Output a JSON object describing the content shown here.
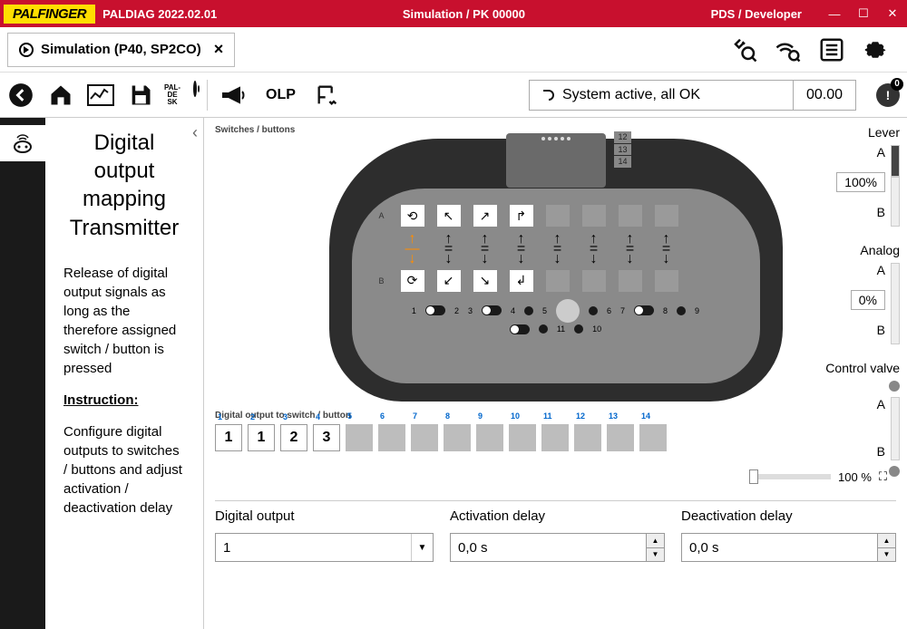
{
  "titlebar": {
    "logo": "PALFINGER",
    "app": "PALDIAG 2022.02.01",
    "center": "Simulation / PK 00000",
    "right": "PDS / Developer"
  },
  "tab": {
    "title": "Simulation (P40, SP2CO)"
  },
  "toolbar": {
    "olp": "OLP",
    "status_text": "System active, all OK",
    "status_num": "00.00",
    "alert_count": "0"
  },
  "description": {
    "title": "Digital output mapping Transmitter",
    "body": "Release of digital output signals as long as the therefore assigned switch / button is pressed",
    "instruction_label": "Instruction:",
    "instruction_body": "Configure digital outputs to switches / buttons and adjust activation / deactivation delay"
  },
  "sections": {
    "switches": "Switches / buttons",
    "do_switch": "Digital output to switch / button"
  },
  "transmitter": {
    "side_labels": [
      "12",
      "13",
      "14"
    ],
    "row_a": "A",
    "row_b": "B",
    "bottom_numbers": [
      "1",
      "2",
      "3",
      "4",
      "5",
      "6",
      "7",
      "8",
      "9",
      "10",
      "11"
    ]
  },
  "do_boxes": [
    {
      "n": "1",
      "v": "1"
    },
    {
      "n": "2",
      "v": "1"
    },
    {
      "n": "3",
      "v": "2"
    },
    {
      "n": "4",
      "v": "3"
    },
    {
      "n": "5",
      "v": ""
    },
    {
      "n": "6",
      "v": ""
    },
    {
      "n": "7",
      "v": ""
    },
    {
      "n": "8",
      "v": ""
    },
    {
      "n": "9",
      "v": ""
    },
    {
      "n": "10",
      "v": ""
    },
    {
      "n": "11",
      "v": ""
    },
    {
      "n": "12",
      "v": ""
    },
    {
      "n": "13",
      "v": ""
    },
    {
      "n": "14",
      "v": ""
    }
  ],
  "zoom": {
    "value": "100 %"
  },
  "config": {
    "col1": "Digital output",
    "col2": "Activation delay",
    "col3": "Deactivation delay",
    "val1": "1",
    "val2": "0,0 s",
    "val3": "0,0 s"
  },
  "right": {
    "lever": {
      "title": "Lever",
      "a": "A",
      "b": "B",
      "val": "100%"
    },
    "analog": {
      "title": "Analog",
      "a": "A",
      "b": "B",
      "val": "0%"
    },
    "cvalve": {
      "title": "Control valve",
      "a": "A",
      "b": "B"
    }
  },
  "colors": {
    "brand_red": "#c8102e",
    "brand_yellow": "#ffde00",
    "orange": "#ff8c00"
  }
}
